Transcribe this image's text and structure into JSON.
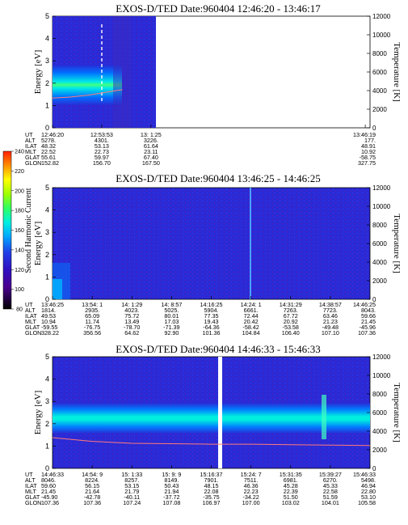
{
  "colors": {
    "background_blue": "#2a2ad6",
    "spectrum": [
      "#000000",
      "#3a0070",
      "#5a00b0",
      "#1f1fd0",
      "#0060ff",
      "#00b0ff",
      "#00f0e0",
      "#40ff80",
      "#c0ff00",
      "#ffff00",
      "#ffa000",
      "#ff3000"
    ],
    "temperature_curve": "#ff7a7a"
  },
  "colorbar": {
    "label": "Second Harmonic Current",
    "ticks": [
      "240",
      "220",
      "200",
      "180",
      "160",
      "140",
      "120",
      "100",
      "80"
    ]
  },
  "ephemeris_labels": [
    "UT",
    "ALT",
    "ILAT",
    "MLT",
    "GLAT",
    "GLON"
  ],
  "chart_data": [
    {
      "type": "heatmap",
      "title": "EXOS-D/TED   Date:960404   12:46:20 - 13:46:17",
      "ylabel": "Energy [eV]",
      "y2label": "Temperature [K]",
      "ylim": [
        0,
        5
      ],
      "y2lim": [
        0,
        12000
      ],
      "yticks": [
        "0",
        "1",
        "2",
        "3",
        "4",
        "5"
      ],
      "y2ticks": [
        "0",
        "2000",
        "4000",
        "6000",
        "8000",
        "10000",
        "12000"
      ],
      "data_extent_fraction": 0.34,
      "band_center_eV": 1.95,
      "temperature_K": [
        3200,
        3300,
        3500,
        3800,
        4100
      ],
      "ephemeris": [
        {
          "UT": "12:46:20",
          "ALT": "5278.",
          "ILAT": "48.32",
          "MLT": "22.52",
          "GLAT": "55.61",
          "GLON": "152.82"
        },
        {
          "UT": "12:53:53",
          "ALT": "4301.",
          "ILAT": "53.13",
          "MLT": "22.73",
          "GLAT": "59.97",
          "GLON": "156.70"
        },
        {
          "UT": "13: 1:25",
          "ALT": "3226.",
          "ILAT": "61.64",
          "MLT": "23.11",
          "GLAT": "67.40",
          "GLON": "167.50"
        },
        {
          "UT": "13:46:19",
          "ALT": "177.",
          "ILAT": "48.91",
          "MLT": "10.92",
          "GLAT": "-58.75",
          "GLON": "327.75"
        }
      ]
    },
    {
      "type": "heatmap",
      "title": "EXOS-D/TED   Date:960404   13:46:25 - 14:46:25",
      "ylabel": "Energy [eV]",
      "y2label": "Temperature [K]",
      "ylim": [
        0,
        5
      ],
      "y2lim": [
        0,
        12000
      ],
      "yticks": [
        "0",
        "1",
        "2",
        "3",
        "4",
        "5"
      ],
      "y2ticks": [
        "0",
        "2000",
        "4000",
        "6000",
        "8000",
        "10000",
        "12000"
      ],
      "ephemeris": [
        {
          "UT": "13:46:25",
          "ALT": "1814.",
          "ILAT": "49.53",
          "MLT": "10.94",
          "GLAT": "-59.55",
          "GLON": "328.22"
        },
        {
          "UT": "13:54: 1",
          "ALT": "2935.",
          "ILAT": "65.09",
          "MLT": "11.74",
          "GLAT": "-76.75",
          "GLON": "356.56"
        },
        {
          "UT": "14: 1:29",
          "ALT": "4023.",
          "ILAT": "75.72",
          "MLT": "13.49",
          "GLAT": "-78.70",
          "GLON": "64.62"
        },
        {
          "UT": "14: 8:57",
          "ALT": "5025.",
          "ILAT": "80.01",
          "MLT": "17.03",
          "GLAT": "-71.39",
          "GLON": "92.90"
        },
        {
          "UT": "14:16:25",
          "ALT": "5904.",
          "ILAT": "77.35",
          "MLT": "19.43",
          "GLAT": "-64.36",
          "GLON": "101.36"
        },
        {
          "UT": "14:24: 1",
          "ALT": "6661.",
          "ILAT": "72.44",
          "MLT": "20.42",
          "GLAT": "-58.42",
          "GLON": "104.84"
        },
        {
          "UT": "14:31:29",
          "ALT": "7263.",
          "ILAT": "67.72",
          "MLT": "20.92",
          "GLAT": "-53.58",
          "GLON": "106.40"
        },
        {
          "UT": "14:38:57",
          "ALT": "7723.",
          "ILAT": "63.46",
          "MLT": "21.23",
          "GLAT": "-49.48",
          "GLON": "107.10"
        },
        {
          "UT": "14:46:25",
          "ALT": "8043.",
          "ILAT": "59.66",
          "MLT": "21.45",
          "GLAT": "-45.96",
          "GLON": "107.36"
        }
      ]
    },
    {
      "type": "heatmap",
      "title": "EXOS-D/TED   Date:960404   14:46:33 - 15:46:33",
      "ylabel": "Energy [eV]",
      "y2label": "Temperature [K]",
      "ylim": [
        0,
        5
      ],
      "y2lim": [
        0,
        12000
      ],
      "yticks": [
        "0",
        "1",
        "2",
        "3",
        "4",
        "5"
      ],
      "y2ticks": [
        "0",
        "2000",
        "4000",
        "6000",
        "8000",
        "10000",
        "12000"
      ],
      "band_center_eV": 2.2,
      "temperature_K": [
        3300,
        2900,
        2700,
        2650,
        2600,
        2600,
        2550,
        2500,
        2450
      ],
      "ephemeris": [
        {
          "UT": "14:46:33",
          "ALT": "8046.",
          "ILAT": "59.60",
          "MLT": "21.45",
          "GLAT": "-45.90",
          "GLON": "107.36"
        },
        {
          "UT": "14:54: 9",
          "ALT": "8224.",
          "ILAT": "56.15",
          "MLT": "21.64",
          "GLAT": "-42.78",
          "GLON": "107.36"
        },
        {
          "UT": "15: 1:33",
          "ALT": "8257.",
          "ILAT": "53.15",
          "MLT": "21.79",
          "GLAT": "-40.11",
          "GLON": "107.24"
        },
        {
          "UT": "15: 9: 9",
          "ALT": "8149.",
          "ILAT": "50.43",
          "MLT": "21.94",
          "GLAT": "-37.72",
          "GLON": "107.08"
        },
        {
          "UT": "15:16:37",
          "ALT": "7901.",
          "ILAT": "48.15",
          "MLT": "22.08",
          "GLAT": "-35.75",
          "GLON": "106.97"
        },
        {
          "UT": "15:24: 7",
          "ALT": "7511.",
          "ILAT": "46.36",
          "MLT": "22.23",
          "GLAT": "-34.22",
          "GLON": "107.00"
        },
        {
          "UT": "15:31:35",
          "ALT": "6981.",
          "ILAT": "45.28",
          "MLT": "22.39",
          "GLAT": "51.50",
          "GLON": "103.02"
        },
        {
          "UT": "15:39:27",
          "ALT": "6270.",
          "ILAT": "45.33",
          "MLT": "22.58",
          "GLAT": "51.59",
          "GLON": "104.01"
        },
        {
          "UT": "15:46:33",
          "ALT": "5498.",
          "ILAT": "46.94",
          "MLT": "22.80",
          "GLAT": "53.10",
          "GLON": "105.58"
        }
      ]
    }
  ]
}
